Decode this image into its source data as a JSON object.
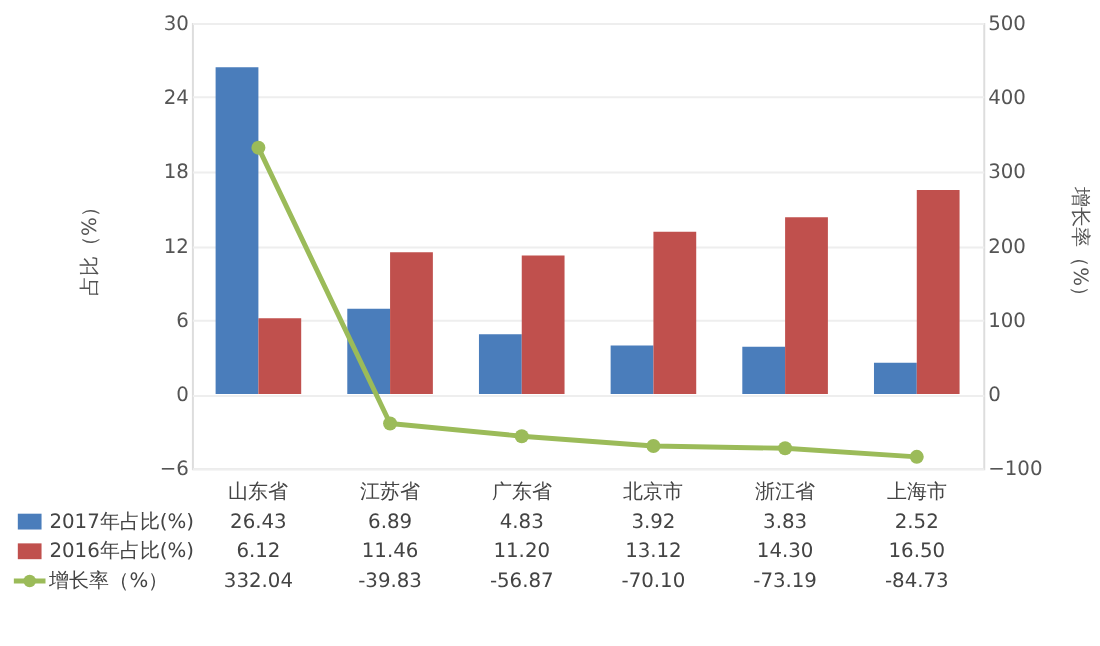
{
  "chart_data": {
    "type": "bar",
    "categories": [
      "山东省",
      "江苏省",
      "广东省",
      "北京市",
      "浙江省",
      "上海市"
    ],
    "ylabel": "占比（%）",
    "y2label": "增长率（%）",
    "ylim": [
      -6,
      30
    ],
    "yticks": [
      -6,
      0,
      6,
      12,
      18,
      24,
      30
    ],
    "y2lim": [
      -100,
      500
    ],
    "y2ticks": [
      -100,
      0,
      100,
      200,
      300,
      400,
      500
    ],
    "grid": "y",
    "legend": "bottom",
    "marker": "circle",
    "series": [
      {
        "name": "2017年占比(%)",
        "color": "#4a7dbb",
        "values": [
          26.43,
          6.89,
          4.83,
          3.92,
          3.83,
          2.52
        ],
        "value_labels": [
          "26.43",
          "6.89",
          "4.83",
          "3.92",
          "3.83",
          "2.52"
        ]
      },
      {
        "name": "2016年占比(%)",
        "color": "#c0504d",
        "values": [
          6.12,
          11.46,
          11.2,
          13.12,
          14.3,
          16.5
        ],
        "value_labels": [
          "6.12",
          "11.46",
          "11.20",
          "13.12",
          "14.30",
          "16.50"
        ]
      },
      {
        "name": "增长率（%）",
        "type": "line",
        "axis": "y2",
        "color": "#9bbb59",
        "values": [
          332.04,
          -39.83,
          -56.87,
          -70.1,
          -73.19,
          -84.73
        ],
        "value_labels": [
          "332.04",
          "-39.83",
          "-56.87",
          "-70.10",
          "-73.19",
          "-84.73"
        ]
      }
    ]
  }
}
